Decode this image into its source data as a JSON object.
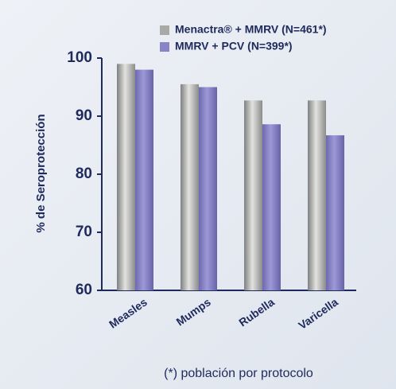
{
  "chart_data": {
    "type": "bar",
    "y_label": "% de Seroprotección",
    "footnote": "(*) población por protocolo",
    "categories": [
      "Measles",
      "Mumps",
      "Rubella",
      "Varicella"
    ],
    "series": [
      {
        "name": "Menactra® + MMRV (N=461*)",
        "color": "#a9aaa8",
        "values": [
          99,
          95.5,
          92.7,
          92.7
        ]
      },
      {
        "name": "MMRV + PCV (N=399*)",
        "color": "#8884c6",
        "values": [
          98,
          95,
          88.6,
          86.7
        ]
      }
    ],
    "ylim": [
      60,
      100
    ],
    "yticks": [
      60,
      70,
      80,
      90,
      100
    ],
    "legend": "upper right"
  }
}
